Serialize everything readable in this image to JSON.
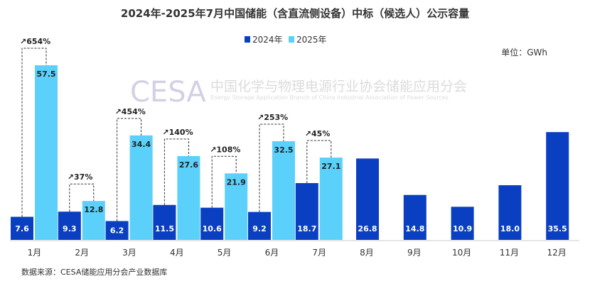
{
  "chart_data": {
    "type": "bar",
    "title": "2024年-2025年7月中国储能（含直流侧设备）中标（候选人）公示容量",
    "unit_label": "单位：GWh",
    "source": "数据来源：CESA储能应用分会产业数据库",
    "watermark": {
      "logo": "CESA",
      "name": "中国化学与物理电源行业协会储能应用分会",
      "name_en": "Energy Storage Application Branch of China Industrial Association of Power Sources"
    },
    "categories": [
      "1月",
      "2月",
      "3月",
      "4月",
      "5月",
      "6月",
      "7月",
      "8月",
      "9月",
      "10月",
      "11月",
      "12月"
    ],
    "series": [
      {
        "name": "2024年",
        "color": "#0a3fc2",
        "values": [
          7.6,
          9.3,
          6.2,
          11.5,
          10.6,
          9.2,
          18.7,
          26.8,
          14.8,
          10.9,
          18.0,
          35.5
        ]
      },
      {
        "name": "2025年",
        "color": "#5bd0fa",
        "values": [
          57.5,
          12.8,
          34.4,
          27.6,
          21.9,
          32.5,
          27.1,
          null,
          null,
          null,
          null,
          null
        ]
      }
    ],
    "growth_annotations": [
      "↗654%",
      "↗37%",
      "↗454%",
      "↗140%",
      "↗108%",
      "↗253%",
      "↗45%"
    ],
    "ylim": [
      0,
      60
    ],
    "grid": false,
    "legend": "top-center"
  }
}
